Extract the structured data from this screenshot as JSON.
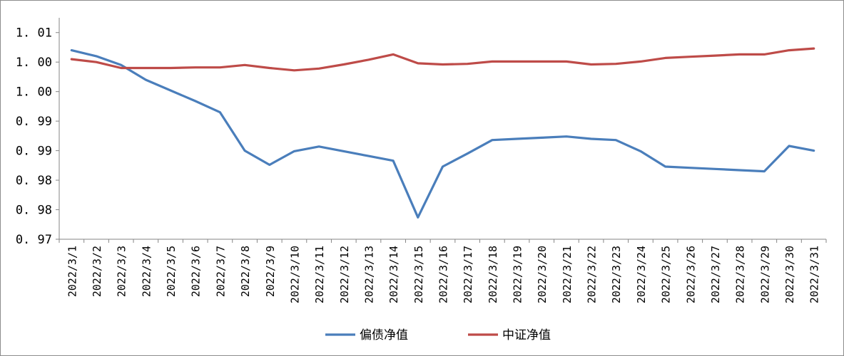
{
  "chart_data": {
    "type": "line",
    "title": "",
    "xlabel": "",
    "ylabel": "",
    "x": [
      "2022/3/1",
      "2022/3/2",
      "2022/3/3",
      "2022/3/4",
      "2022/3/5",
      "2022/3/6",
      "2022/3/7",
      "2022/3/8",
      "2022/3/9",
      "2022/3/10",
      "2022/3/11",
      "2022/3/12",
      "2022/3/13",
      "2022/3/14",
      "2022/3/15",
      "2022/3/16",
      "2022/3/17",
      "2022/3/18",
      "2022/3/19",
      "2022/3/20",
      "2022/3/21",
      "2022/3/22",
      "2022/3/23",
      "2022/3/24",
      "2022/3/25",
      "2022/3/26",
      "2022/3/27",
      "2022/3/28",
      "2022/3/29",
      "2022/3/30",
      "2022/3/31"
    ],
    "ylim": [
      0.97,
      1.0075
    ],
    "y_tick_values": [
      0.97,
      0.975,
      0.98,
      0.985,
      0.99,
      0.995,
      1.0,
      1.005
    ],
    "y_tick_labels": [
      "0. 97",
      "0. 98",
      "0. 98",
      "0. 99",
      "0. 99",
      "1. 00",
      "1. 00",
      "1. 01"
    ],
    "grid": false,
    "legend_position": "bottom",
    "series": [
      {
        "name": "偏债净值",
        "color": "#4a7ebb",
        "values": [
          1.002,
          1.001,
          0.9995,
          0.997,
          0.9952,
          0.9934,
          0.9915,
          0.985,
          0.9826,
          0.9849,
          0.9857,
          0.9849,
          0.9841,
          0.9833,
          0.9737,
          0.9823,
          0.9845,
          0.9868,
          0.987,
          0.9872,
          0.9874,
          0.987,
          0.9868,
          0.9849,
          0.9823,
          0.9821,
          0.9819,
          0.9817,
          0.9815,
          0.9858,
          0.985
        ]
      },
      {
        "name": "中证净值",
        "color": "#be4b48",
        "values": [
          1.0005,
          1.0,
          0.999,
          0.999,
          0.999,
          0.9991,
          0.9991,
          0.9995,
          0.999,
          0.9986,
          0.9989,
          0.9996,
          1.0004,
          1.0013,
          0.9998,
          0.9996,
          0.9997,
          1.0001,
          1.0001,
          1.0001,
          1.0001,
          0.9996,
          0.9997,
          1.0001,
          1.0007,
          1.0009,
          1.0011,
          1.0013,
          1.0013,
          1.002,
          1.0023
        ]
      }
    ]
  }
}
